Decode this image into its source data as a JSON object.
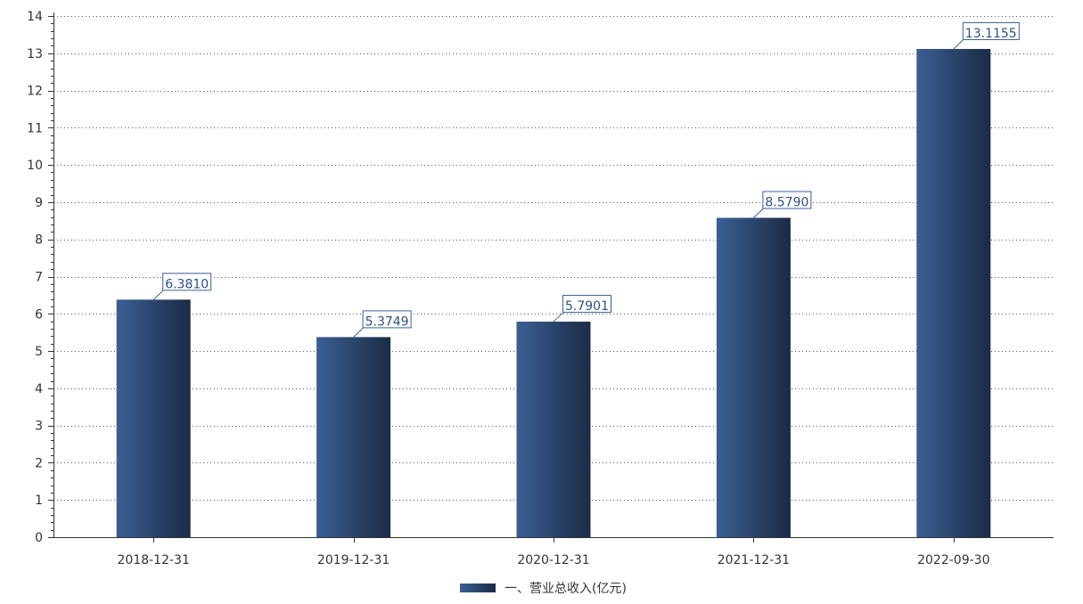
{
  "chart_data": {
    "type": "bar",
    "categories": [
      "2018-12-31",
      "2019-12-31",
      "2020-12-31",
      "2021-12-31",
      "2022-09-30"
    ],
    "series": [
      {
        "name": "一、营业总收入(亿元)",
        "values": [
          6.381,
          5.3749,
          5.7901,
          8.579,
          13.1155
        ],
        "labels": [
          "6.3810",
          "5.3749",
          "5.7901",
          "8.5790",
          "13.1155"
        ]
      }
    ],
    "title": "",
    "xlabel": "",
    "ylabel": "",
    "ylim": [
      0,
      14
    ],
    "yticks": [
      0,
      1,
      2,
      3,
      4,
      5,
      6,
      7,
      8,
      9,
      10,
      11,
      12,
      13,
      14
    ],
    "grid": true,
    "grid_style": "dotted",
    "legend_position": "bottom-center",
    "colors": {
      "bar_light": "#3a5f93",
      "bar_dark": "#1b2b45",
      "label_text": "#2e5286",
      "label_border": "#3a5f93",
      "axis": "#333333",
      "grid": "#555555"
    }
  }
}
